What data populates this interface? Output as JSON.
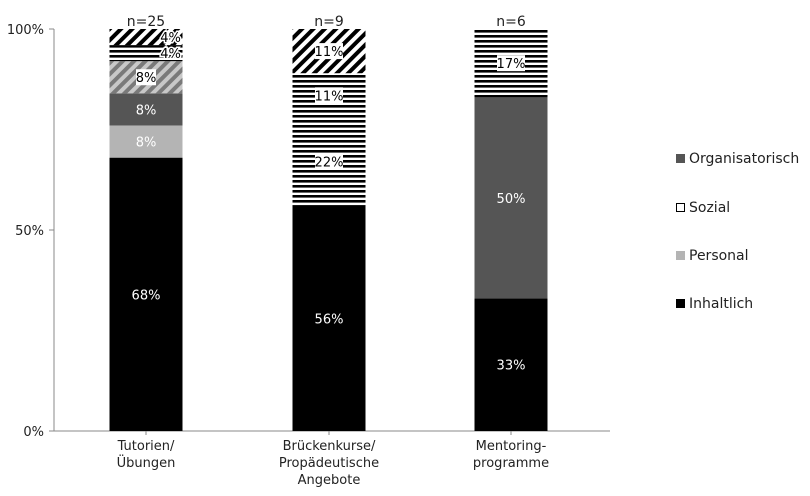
{
  "chart_data": {
    "type": "bar",
    "stacked": true,
    "categories": [
      [
        "Tutorien/",
        "Übungen"
      ],
      [
        "Brückenkurse/",
        "Propädeutische",
        "Angebote"
      ],
      [
        "Mentoring-",
        "programme"
      ]
    ],
    "n_labels": [
      "n=25",
      "n=9",
      "n=6"
    ],
    "y_ticks": [
      "0%",
      "50%",
      "100%"
    ],
    "ylim": [
      0,
      100
    ],
    "legend_position": "right",
    "series": [
      {
        "name": "Inhaltlich",
        "color": "#000000",
        "pattern": "solid",
        "values": [
          68,
          56,
          33
        ],
        "labels": [
          "68%",
          "56%",
          "33%"
        ]
      },
      {
        "name": "Personal",
        "color": "#b4b4b4",
        "pattern": "solid",
        "values": [
          8,
          0,
          0
        ],
        "labels": [
          "8%",
          "",
          ""
        ]
      },
      {
        "name": "Organisatorisch",
        "color": "#555555",
        "pattern": "solid",
        "values": [
          8,
          0,
          50
        ],
        "labels": [
          "8%",
          "",
          "50%"
        ]
      },
      {
        "name": "",
        "color": "#808080",
        "pattern": "diagonal-gray",
        "values": [
          8,
          0,
          0
        ],
        "labels": [
          "8%",
          "",
          ""
        ]
      },
      {
        "name": "",
        "color": "#000000",
        "pattern": "horizontal-stripes",
        "values": [
          0,
          22,
          0
        ],
        "labels": [
          "",
          "22%",
          ""
        ]
      },
      {
        "name": "",
        "color": "#000000",
        "pattern": "horizontal-stripes",
        "values": [
          0,
          11,
          0
        ],
        "labels": [
          "",
          "11%",
          ""
        ]
      },
      {
        "name": "Sozial",
        "color": "#000000",
        "pattern": "horizontal-stripes",
        "values": [
          4,
          0,
          17
        ],
        "labels": [
          "4%",
          "",
          "17%"
        ]
      },
      {
        "name": "",
        "color": "#000000",
        "pattern": "diagonal-black",
        "values": [
          4,
          11,
          0
        ],
        "labels": [
          "4%",
          "11%",
          ""
        ]
      }
    ],
    "legend": [
      {
        "label": "Organisatorisch",
        "color": "#555555",
        "swatch": "filled"
      },
      {
        "label": "Sozial",
        "color": "#000000",
        "swatch": "outline"
      },
      {
        "label": "Personal",
        "color": "#b4b4b4",
        "swatch": "filled"
      },
      {
        "label": "Inhaltlich",
        "color": "#000000",
        "swatch": "filled"
      }
    ]
  }
}
